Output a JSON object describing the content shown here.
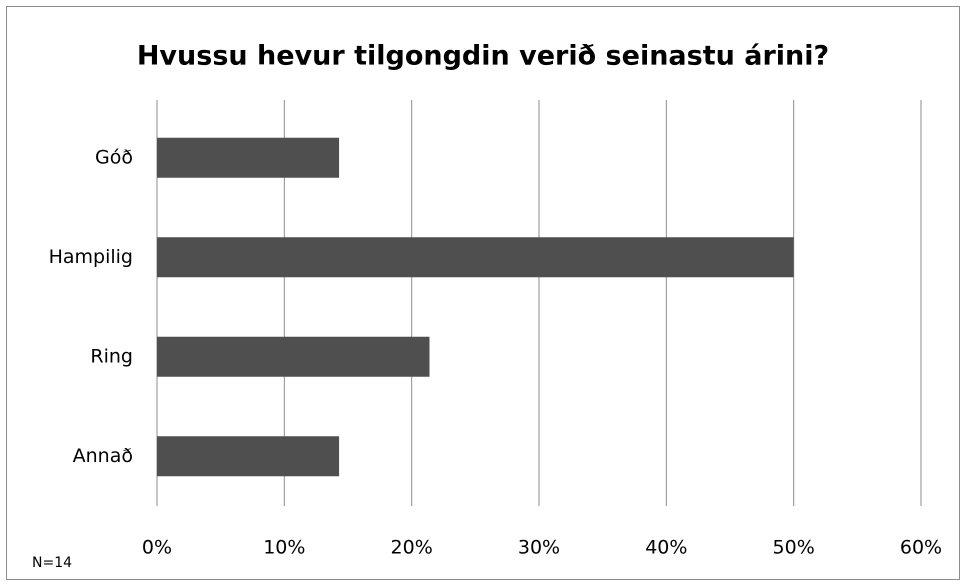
{
  "chart_data": {
    "type": "barh",
    "title": "Hvussu hevur tilgongdin verið seinastu árini?",
    "annotation": "N=14",
    "categories": [
      "Góð",
      "Hampilig",
      "Ring",
      "Annað"
    ],
    "values": [
      14.3,
      50,
      21.4,
      14.3
    ],
    "color": "#4f4f4f",
    "xlim": [
      0,
      60
    ],
    "xticks": [
      {
        "value": 0,
        "label": "0%"
      },
      {
        "value": 10,
        "label": "10%"
      },
      {
        "value": 20,
        "label": "20%"
      },
      {
        "value": 30,
        "label": "30%"
      },
      {
        "value": 40,
        "label": "40%"
      },
      {
        "value": 50,
        "label": "50%"
      },
      {
        "value": 60,
        "label": "60%"
      }
    ],
    "grid": true
  }
}
